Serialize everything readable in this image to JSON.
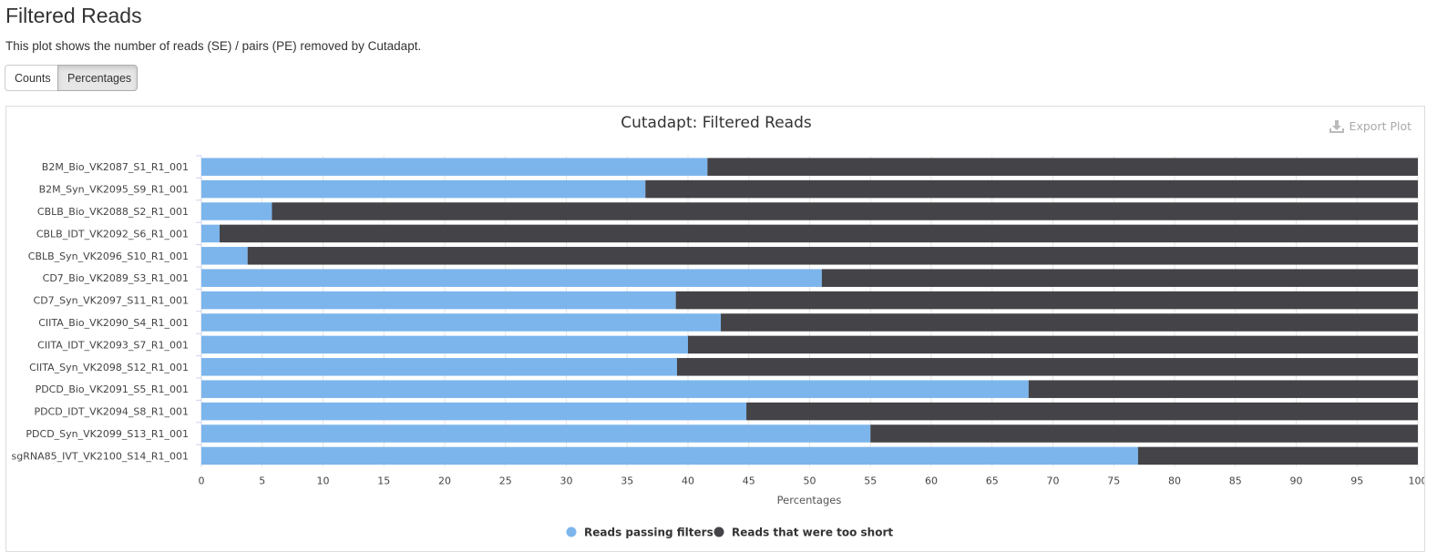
{
  "page": {
    "title": "Filtered Reads",
    "description": "This plot shows the number of reads (SE) / pairs (PE) removed by Cutadapt."
  },
  "toolbar": {
    "counts_label": "Counts",
    "percentages_label": "Percentages",
    "active": "Percentages"
  },
  "export": {
    "label": "Export Plot",
    "icon": "download-icon"
  },
  "colors": {
    "pass": "#7cb5ec",
    "short": "#434348"
  },
  "chart_data": {
    "type": "bar",
    "orientation": "horizontal",
    "stacked": "percent",
    "title": "Cutadapt: Filtered Reads",
    "xlabel": "Percentages",
    "ylabel": "",
    "xlim": [
      0,
      100
    ],
    "xticks": [
      0,
      5,
      10,
      15,
      20,
      25,
      30,
      35,
      40,
      45,
      50,
      55,
      60,
      65,
      70,
      75,
      80,
      85,
      90,
      95,
      100
    ],
    "grid": true,
    "legend_position": "bottom",
    "categories": [
      "B2M_Bio_VK2087_S1_R1_001",
      "B2M_Syn_VK2095_S9_R1_001",
      "CBLB_Bio_VK2088_S2_R1_001",
      "CBLB_IDT_VK2092_S6_R1_001",
      "CBLB_Syn_VK2096_S10_R1_001",
      "CD7_Bio_VK2089_S3_R1_001",
      "CD7_Syn_VK2097_S11_R1_001",
      "CIITA_Bio_VK2090_S4_R1_001",
      "CIITA_IDT_VK2093_S7_R1_001",
      "CIITA_Syn_VK2098_S12_R1_001",
      "PDCD_Bio_VK2091_S5_R1_001",
      "PDCD_IDT_VK2094_S8_R1_001",
      "PDCD_Syn_VK2099_S13_R1_001",
      "sgRNA85_IVT_VK2100_S14_R1_001"
    ],
    "series": [
      {
        "name": "Reads passing filters",
        "color": "#7cb5ec",
        "values": [
          41.6,
          36.5,
          5.8,
          1.5,
          3.8,
          51.0,
          39.0,
          42.7,
          40.0,
          39.1,
          68.0,
          44.8,
          55.0,
          77.0
        ]
      },
      {
        "name": "Reads that were too short",
        "color": "#434348",
        "values": [
          58.4,
          63.5,
          94.2,
          98.5,
          96.2,
          49.0,
          61.0,
          57.3,
          60.0,
          60.9,
          32.0,
          55.2,
          45.0,
          23.0
        ]
      }
    ]
  }
}
